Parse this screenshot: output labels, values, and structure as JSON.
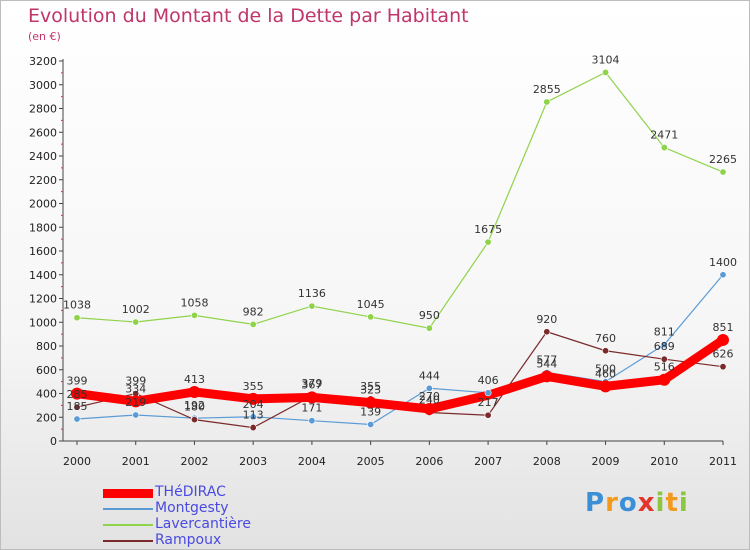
{
  "title": "Evolution du Montant de la Dette par Habitant",
  "unit": "(en €)",
  "logo": {
    "text": "Proxiti",
    "letters": [
      {
        "ch": "P",
        "color": "#3a8fd6"
      },
      {
        "ch": "r",
        "color": "#f19a1d"
      },
      {
        "ch": "o",
        "color": "#3a8fd6"
      },
      {
        "ch": "x",
        "color": "#e5352b"
      },
      {
        "ch": "i",
        "color": "#8cc63f"
      },
      {
        "ch": "t",
        "color": "#f19a1d"
      },
      {
        "ch": "i",
        "color": "#8cc63f"
      }
    ]
  },
  "chart_data": {
    "type": "line",
    "x": [
      "2000",
      "2001",
      "2002",
      "2003",
      "2004",
      "2005",
      "2006",
      "2007",
      "2008",
      "2009",
      "2010",
      "2011"
    ],
    "ylim": [
      0,
      3200
    ],
    "yticks": [
      0,
      200,
      400,
      600,
      800,
      1000,
      1200,
      1400,
      1600,
      1800,
      2000,
      2200,
      2400,
      2600,
      2800,
      3000,
      3200
    ],
    "grid": false,
    "legend_position": "bottom-left",
    "series": [
      {
        "name": "THéDIRAC",
        "color": "#ff0000",
        "width": 9,
        "values": [
          399,
          334,
          413,
          355,
          367,
          323,
          270,
          null,
          544,
          460,
          516,
          851
        ],
        "labels": [
          "399",
          "334",
          "413",
          "355",
          "367",
          "323",
          "270",
          "",
          "544",
          "460",
          "516",
          "851"
        ]
      },
      {
        "name": "Montgesty",
        "color": "#5b9bd5",
        "width": 1.2,
        "values": [
          185,
          219,
          192,
          204,
          171,
          139,
          444,
          406,
          577,
          500,
          811,
          1400
        ],
        "labels": [
          "185",
          "219",
          "192",
          "204",
          "171",
          "139",
          "444",
          "406",
          "577",
          "500",
          "811",
          "1400"
        ]
      },
      {
        "name": "Lavercantière",
        "color": "#8fd34a",
        "width": 1.2,
        "values": [
          1038,
          1002,
          1058,
          982,
          1136,
          1045,
          950,
          1675,
          2855,
          3104,
          2471,
          2265
        ],
        "labels": [
          "1038",
          "1002",
          "1058",
          "982",
          "1136",
          "1045",
          "950",
          "1675",
          "2855",
          "3104",
          "2471",
          "2265"
        ]
      },
      {
        "name": "Rampoux",
        "color": "#7a2a2a",
        "width": 1.2,
        "values": [
          285,
          399,
          180,
          113,
          379,
          355,
          240,
          217,
          920,
          760,
          689,
          626
        ],
        "labels": [
          "285",
          "399",
          "180",
          "113",
          "379",
          "355",
          "240",
          "217",
          "920",
          "760",
          "689",
          "626"
        ]
      }
    ]
  }
}
